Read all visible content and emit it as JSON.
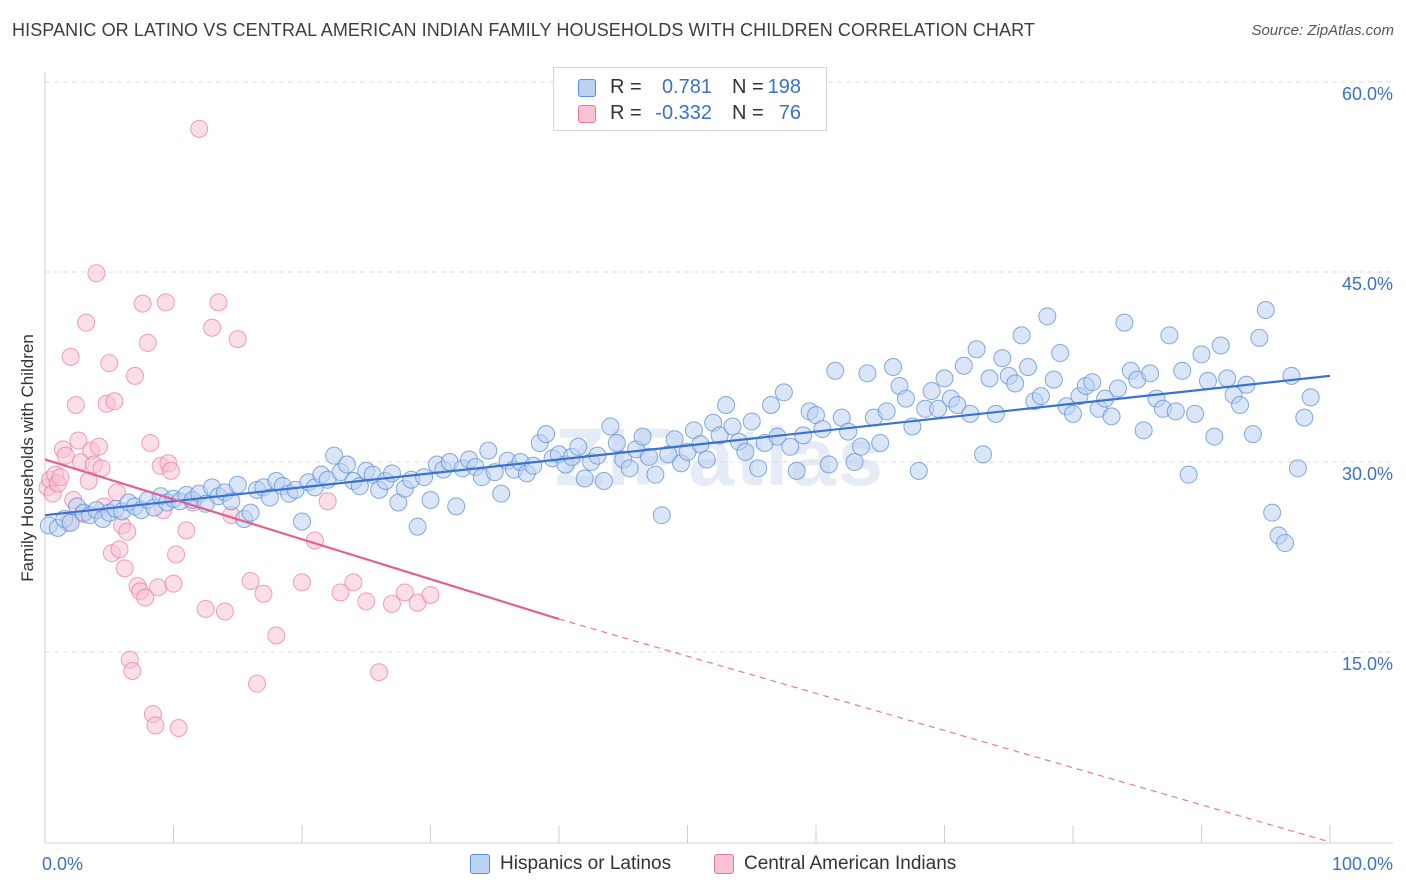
{
  "header": {
    "title": "HISPANIC OR LATINO VS CENTRAL AMERICAN INDIAN FAMILY HOUSEHOLDS WITH CHILDREN CORRELATION CHART",
    "source": "Source: ZipAtlas.com"
  },
  "watermark": "ZIPatlas",
  "stats_legend": {
    "rows": [
      {
        "r_label": "R =",
        "r_value": "0.781",
        "n_label": "N =",
        "n_value": "198",
        "color": "#5b8fd6"
      },
      {
        "r_label": "R =",
        "r_value": "-0.332",
        "n_label": "N =",
        "n_value": "76",
        "color": "#e8799c"
      }
    ]
  },
  "bottom_legend": {
    "items": [
      {
        "label": "Hispanics or Latinos",
        "color": "#5b8fd6"
      },
      {
        "label": "Central American Indians",
        "color": "#e8799c"
      }
    ]
  },
  "chart_data": {
    "type": "scatter",
    "title": "HISPANIC OR LATINO VS CENTRAL AMERICAN INDIAN FAMILY HOUSEHOLDS WITH CHILDREN CORRELATION CHART",
    "xlabel": "",
    "ylabel": "Family Households with Children",
    "xlim": [
      0,
      105
    ],
    "ylim": [
      0,
      62
    ],
    "x_tick_labels": [
      {
        "value": 0,
        "label": "0.0%"
      },
      {
        "value": 100,
        "label": "100.0%"
      }
    ],
    "y_tick_labels": [
      {
        "value": 15,
        "label": "15.0%"
      },
      {
        "value": 30,
        "label": "30.0%"
      },
      {
        "value": 45,
        "label": "45.0%"
      },
      {
        "value": 60,
        "label": "60.0%"
      }
    ],
    "x_minor_ticks": [
      0,
      10,
      20,
      30,
      40,
      50,
      60,
      70,
      80,
      90,
      100
    ],
    "grid": true,
    "legend_position": "top-center",
    "series": [
      {
        "name": "Hispanics or Latinos",
        "color": "#5b8fd6",
        "trend": {
          "x": [
            0,
            100
          ],
          "y": [
            25.8,
            36.8
          ],
          "style": "solid"
        },
        "points": [
          [
            0.3,
            25.0
          ],
          [
            1,
            24.8
          ],
          [
            1.5,
            25.5
          ],
          [
            2,
            25.2
          ],
          [
            2.5,
            26.5
          ],
          [
            3,
            26.0
          ],
          [
            3.5,
            25.8
          ],
          [
            4,
            26.2
          ],
          [
            4.5,
            25.5
          ],
          [
            5,
            26.0
          ],
          [
            5.5,
            26.3
          ],
          [
            6,
            26.1
          ],
          [
            6.5,
            26.8
          ],
          [
            7,
            26.5
          ],
          [
            7.5,
            26.2
          ],
          [
            8,
            27.0
          ],
          [
            8.5,
            26.4
          ],
          [
            9,
            27.3
          ],
          [
            9.5,
            26.8
          ],
          [
            10,
            27.1
          ],
          [
            10.5,
            26.9
          ],
          [
            11,
            27.4
          ],
          [
            11.5,
            27.0
          ],
          [
            12,
            27.5
          ],
          [
            12.5,
            26.7
          ],
          [
            13,
            28.0
          ],
          [
            13.5,
            27.3
          ],
          [
            14,
            27.6
          ],
          [
            14.5,
            26.9
          ],
          [
            15,
            28.2
          ],
          [
            15.5,
            25.5
          ],
          [
            16,
            26.0
          ],
          [
            16.5,
            27.8
          ],
          [
            17,
            28.0
          ],
          [
            17.5,
            27.2
          ],
          [
            18,
            28.5
          ],
          [
            18.5,
            28.1
          ],
          [
            19,
            27.5
          ],
          [
            19.5,
            27.8
          ],
          [
            20,
            25.3
          ],
          [
            20.5,
            28.4
          ],
          [
            21,
            28.0
          ],
          [
            21.5,
            29.0
          ],
          [
            22,
            28.6
          ],
          [
            22.5,
            30.5
          ],
          [
            23,
            29.2
          ],
          [
            23.5,
            29.8
          ],
          [
            24,
            28.5
          ],
          [
            24.5,
            28.1
          ],
          [
            25,
            29.3
          ],
          [
            25.5,
            29.0
          ],
          [
            26,
            27.8
          ],
          [
            26.5,
            28.5
          ],
          [
            27,
            29.1
          ],
          [
            27.5,
            26.8
          ],
          [
            28,
            27.9
          ],
          [
            28.5,
            28.6
          ],
          [
            29,
            24.9
          ],
          [
            29.5,
            28.8
          ],
          [
            30,
            27.0
          ],
          [
            30.5,
            29.8
          ],
          [
            31,
            29.4
          ],
          [
            31.5,
            30.0
          ],
          [
            32,
            26.5
          ],
          [
            32.5,
            29.5
          ],
          [
            33,
            30.2
          ],
          [
            33.5,
            29.6
          ],
          [
            34,
            28.8
          ],
          [
            34.5,
            30.9
          ],
          [
            35,
            29.2
          ],
          [
            35.5,
            27.5
          ],
          [
            36,
            30.1
          ],
          [
            36.5,
            29.4
          ],
          [
            37,
            30.0
          ],
          [
            37.5,
            29.1
          ],
          [
            38,
            29.7
          ],
          [
            38.5,
            31.5
          ],
          [
            39,
            32.2
          ],
          [
            39.5,
            30.3
          ],
          [
            40,
            30.6
          ],
          [
            40.5,
            29.8
          ],
          [
            41,
            30.4
          ],
          [
            41.5,
            31.2
          ],
          [
            42,
            28.7
          ],
          [
            42.5,
            30.0
          ],
          [
            43,
            30.5
          ],
          [
            43.5,
            28.5
          ],
          [
            44,
            32.8
          ],
          [
            44.5,
            31.5
          ],
          [
            45,
            30.2
          ],
          [
            45.5,
            29.5
          ],
          [
            46,
            31.0
          ],
          [
            46.5,
            32.0
          ],
          [
            47,
            30.4
          ],
          [
            47.5,
            29.0
          ],
          [
            48,
            25.8
          ],
          [
            48.5,
            30.6
          ],
          [
            49,
            31.8
          ],
          [
            49.5,
            29.9
          ],
          [
            50,
            30.8
          ],
          [
            50.5,
            32.5
          ],
          [
            51,
            31.4
          ],
          [
            51.5,
            30.2
          ],
          [
            52,
            33.1
          ],
          [
            52.5,
            32.1
          ],
          [
            53,
            34.5
          ],
          [
            53.5,
            32.8
          ],
          [
            54,
            31.6
          ],
          [
            54.5,
            30.8
          ],
          [
            55,
            33.2
          ],
          [
            55.5,
            29.5
          ],
          [
            56,
            31.5
          ],
          [
            56.5,
            34.5
          ],
          [
            57,
            32.0
          ],
          [
            57.5,
            35.5
          ],
          [
            58,
            31.2
          ],
          [
            58.5,
            29.3
          ],
          [
            59,
            32.1
          ],
          [
            59.5,
            34.0
          ],
          [
            60,
            33.7
          ],
          [
            60.5,
            32.6
          ],
          [
            61,
            29.8
          ],
          [
            61.5,
            37.2
          ],
          [
            62,
            33.5
          ],
          [
            62.5,
            32.4
          ],
          [
            63,
            30.0
          ],
          [
            63.5,
            31.2
          ],
          [
            64,
            37.0
          ],
          [
            64.5,
            33.5
          ],
          [
            65,
            31.5
          ],
          [
            65.5,
            34.0
          ],
          [
            66,
            37.5
          ],
          [
            66.5,
            36.0
          ],
          [
            67,
            35.0
          ],
          [
            67.5,
            32.8
          ],
          [
            68,
            29.3
          ],
          [
            68.5,
            34.2
          ],
          [
            69,
            35.6
          ],
          [
            69.5,
            34.2
          ],
          [
            70,
            36.6
          ],
          [
            70.5,
            35.0
          ],
          [
            71,
            34.5
          ],
          [
            71.5,
            37.6
          ],
          [
            72,
            33.8
          ],
          [
            72.5,
            38.9
          ],
          [
            73,
            30.6
          ],
          [
            73.5,
            36.6
          ],
          [
            74,
            33.8
          ],
          [
            74.5,
            38.2
          ],
          [
            75,
            36.8
          ],
          [
            75.5,
            36.2
          ],
          [
            76,
            40.0
          ],
          [
            76.5,
            37.5
          ],
          [
            77,
            34.8
          ],
          [
            77.5,
            35.2
          ],
          [
            78,
            41.5
          ],
          [
            78.5,
            36.5
          ],
          [
            79,
            38.6
          ],
          [
            79.5,
            34.4
          ],
          [
            80,
            33.8
          ],
          [
            80.5,
            35.2
          ],
          [
            81,
            36.0
          ],
          [
            81.5,
            36.3
          ],
          [
            82,
            34.2
          ],
          [
            82.5,
            35.0
          ],
          [
            83,
            33.6
          ],
          [
            83.5,
            35.8
          ],
          [
            84,
            41.0
          ],
          [
            84.5,
            37.2
          ],
          [
            85,
            36.5
          ],
          [
            85.5,
            32.5
          ],
          [
            86,
            37.0
          ],
          [
            86.5,
            35.0
          ],
          [
            87,
            34.2
          ],
          [
            87.5,
            40.0
          ],
          [
            88,
            34.0
          ],
          [
            88.5,
            37.2
          ],
          [
            89,
            29.0
          ],
          [
            89.5,
            33.8
          ],
          [
            90,
            38.5
          ],
          [
            90.5,
            36.4
          ],
          [
            91,
            32.0
          ],
          [
            91.5,
            39.2
          ],
          [
            92,
            36.6
          ],
          [
            92.5,
            35.3
          ],
          [
            93,
            34.5
          ],
          [
            93.5,
            36.1
          ],
          [
            94,
            32.2
          ],
          [
            94.5,
            39.8
          ],
          [
            95,
            42.0
          ],
          [
            95.5,
            26.0
          ],
          [
            96,
            24.2
          ],
          [
            96.5,
            23.6
          ],
          [
            97,
            36.8
          ],
          [
            97.5,
            29.5
          ],
          [
            98,
            33.5
          ],
          [
            98.5,
            35.1
          ]
        ]
      },
      {
        "name": "Central American Indians",
        "color": "#e8799c",
        "trend": {
          "x": [
            0,
            40
          ],
          "y": [
            30.2,
            17.6
          ],
          "style": "solid",
          "extension": {
            "x": [
              40,
              100
            ],
            "y": [
              17.6,
              0
            ],
            "style": "dashed"
          }
        },
        "points": [
          [
            0.2,
            28.0
          ],
          [
            0.4,
            28.6
          ],
          [
            0.6,
            27.5
          ],
          [
            0.8,
            29.0
          ],
          [
            1,
            28.3
          ],
          [
            1.2,
            28.8
          ],
          [
            1.4,
            31.0
          ],
          [
            1.6,
            30.5
          ],
          [
            1.8,
            25.2
          ],
          [
            2,
            38.3
          ],
          [
            2.2,
            27.0
          ],
          [
            2.4,
            34.5
          ],
          [
            2.6,
            31.7
          ],
          [
            2.8,
            30.0
          ],
          [
            3,
            25.9
          ],
          [
            3.2,
            41.0
          ],
          [
            3.4,
            28.5
          ],
          [
            3.6,
            30.9
          ],
          [
            3.8,
            29.8
          ],
          [
            4,
            44.9
          ],
          [
            4.2,
            31.2
          ],
          [
            4.4,
            29.5
          ],
          [
            4.6,
            26.5
          ],
          [
            4.8,
            34.6
          ],
          [
            5,
            37.8
          ],
          [
            5.2,
            22.8
          ],
          [
            5.4,
            34.8
          ],
          [
            5.6,
            27.6
          ],
          [
            5.8,
            23.1
          ],
          [
            6,
            25.0
          ],
          [
            6.2,
            21.6
          ],
          [
            6.4,
            24.5
          ],
          [
            6.6,
            14.4
          ],
          [
            6.8,
            13.5
          ],
          [
            7,
            36.8
          ],
          [
            7.2,
            20.2
          ],
          [
            7.4,
            19.8
          ],
          [
            7.6,
            42.5
          ],
          [
            7.8,
            19.3
          ],
          [
            8,
            39.4
          ],
          [
            8.2,
            31.5
          ],
          [
            8.4,
            10.1
          ],
          [
            8.6,
            9.2
          ],
          [
            8.8,
            20.1
          ],
          [
            9,
            29.7
          ],
          [
            9.2,
            26.2
          ],
          [
            9.4,
            42.6
          ],
          [
            9.6,
            29.9
          ],
          [
            9.8,
            29.3
          ],
          [
            10,
            20.4
          ],
          [
            10.2,
            22.7
          ],
          [
            10.4,
            9.0
          ],
          [
            11,
            24.6
          ],
          [
            11.5,
            26.8
          ],
          [
            12,
            56.3
          ],
          [
            12.5,
            18.4
          ],
          [
            13,
            40.6
          ],
          [
            13.5,
            42.6
          ],
          [
            14,
            18.2
          ],
          [
            14.5,
            25.8
          ],
          [
            15,
            39.7
          ],
          [
            16,
            20.6
          ],
          [
            16.5,
            12.5
          ],
          [
            17,
            19.6
          ],
          [
            18,
            16.3
          ],
          [
            20,
            20.5
          ],
          [
            21,
            23.8
          ],
          [
            22,
            26.9
          ],
          [
            23,
            19.7
          ],
          [
            24,
            20.5
          ],
          [
            25,
            19.0
          ],
          [
            26,
            13.4
          ],
          [
            27,
            18.8
          ],
          [
            28,
            19.7
          ],
          [
            29,
            18.9
          ],
          [
            30,
            19.5
          ]
        ]
      }
    ]
  }
}
